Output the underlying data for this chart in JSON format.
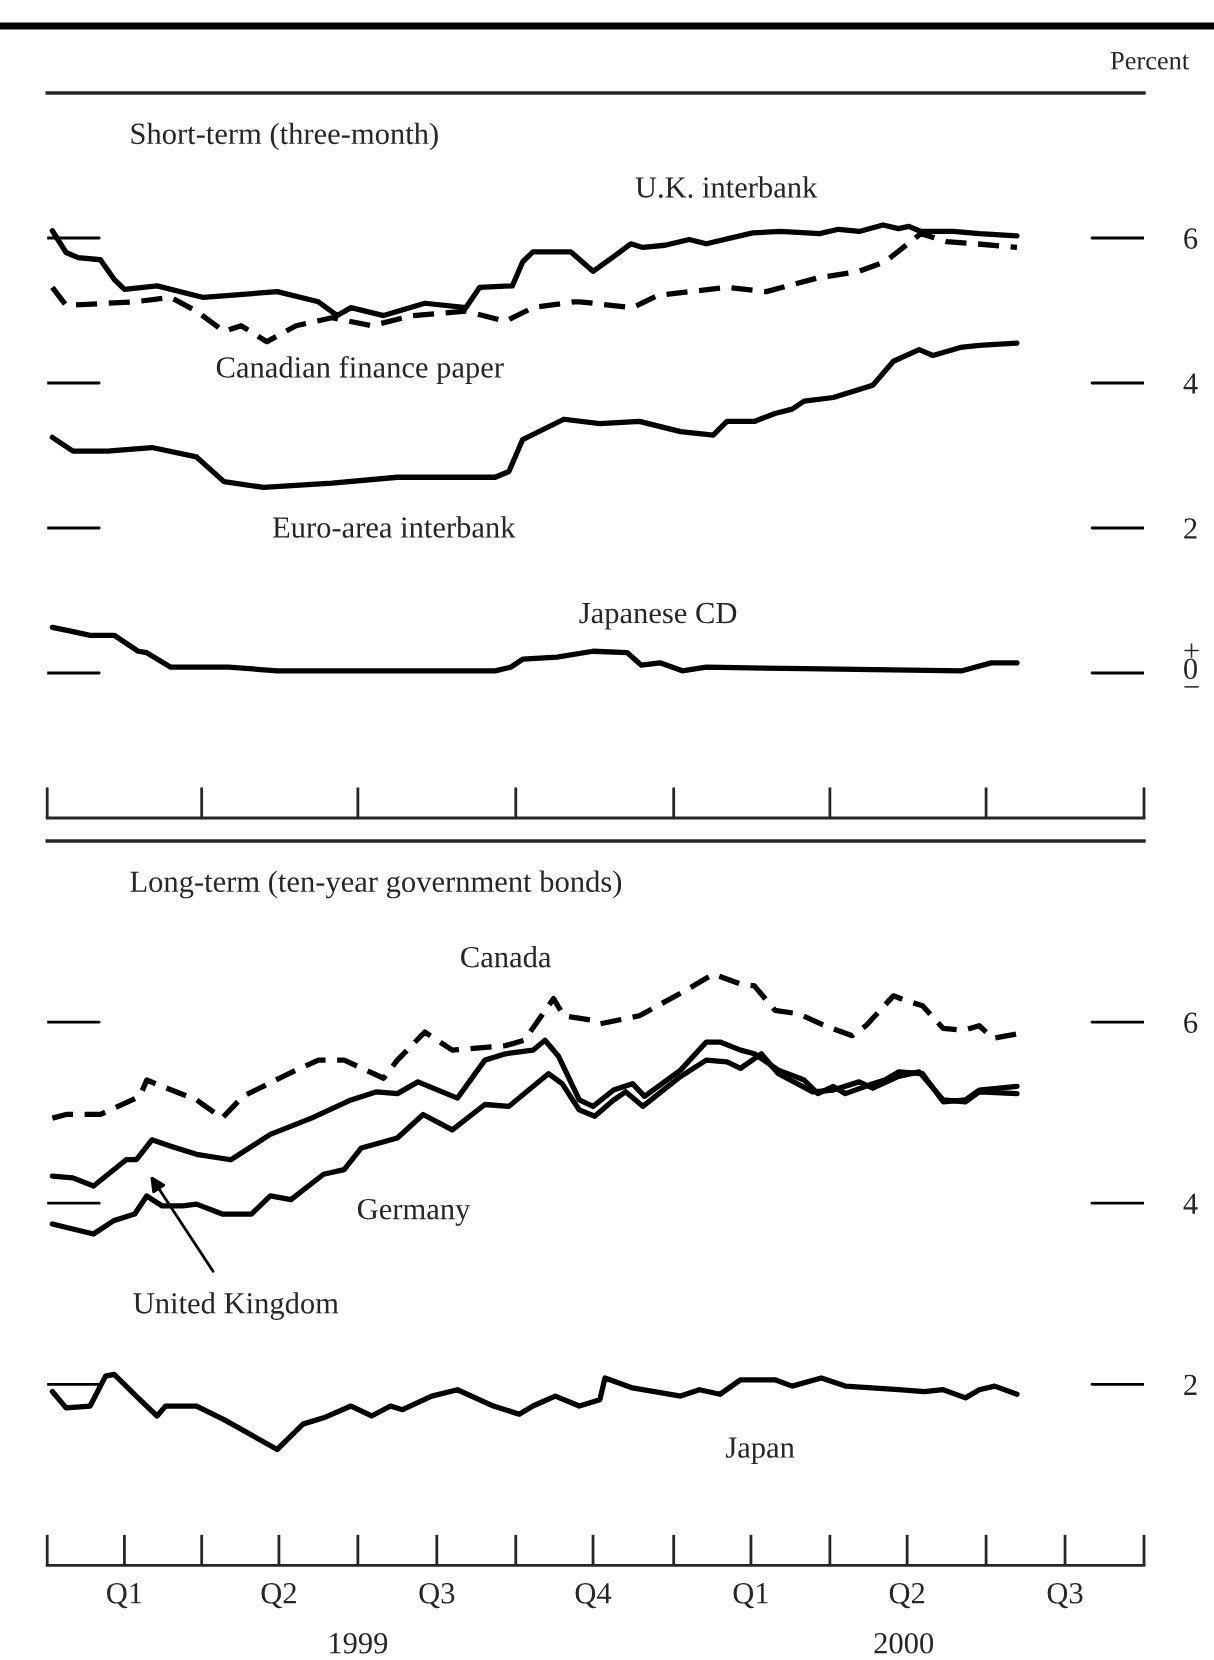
{
  "chart_data": [
    {
      "type": "line",
      "title": "Short-term (three-month)",
      "ylabel": "Percent",
      "tick_labels": "y",
      "grid": false,
      "legend": false,
      "xlim": [
        "1999-01-01",
        "2000-10-01"
      ],
      "xticks": [
        {
          "value": "1999-01-01",
          "label": null
        },
        {
          "value": "1999-04-01",
          "label": null
        },
        {
          "value": "1999-07-01",
          "label": null
        },
        {
          "value": "1999-10-01",
          "label": null
        },
        {
          "value": "2000-01-01",
          "label": null
        },
        {
          "value": "2000-04-01",
          "label": null
        },
        {
          "value": "2000-07-01",
          "label": null
        },
        {
          "value": "2000-10-01",
          "label": null
        }
      ],
      "ylim": [
        -2,
        8
      ],
      "yticks": [
        {
          "value": 0,
          "label": "+\n0\n−"
        },
        2,
        4,
        6
      ],
      "series": [
        {
          "color": "#000000",
          "line_style": "solid",
          "x": [
            "1999-01-04",
            "1999-01-12",
            "1999-01-19",
            "1999-02-01",
            "1999-02-09",
            "1999-02-15",
            "1999-03-06",
            "1999-04-02",
            "1999-05-15",
            "1999-06-08",
            "1999-06-19",
            "1999-06-27",
            "1999-07-16",
            "1999-08-09",
            "1999-09-02",
            "1999-09-10",
            "1999-09-29",
            "1999-10-05",
            "1999-10-11",
            "1999-11-02",
            "1999-11-15",
            "1999-11-28",
            "1999-12-07",
            "1999-12-14",
            "1999-12-27",
            "2000-01-10",
            "2000-01-20",
            "2000-02-16",
            "2000-03-03",
            "2000-03-26",
            "2000-04-06",
            "2000-04-18",
            "2000-05-02",
            "2000-05-11",
            "2000-05-17",
            "2000-05-24",
            "2000-06-12",
            "2000-06-27",
            "2000-07-19"
          ],
          "values": [
            6.1,
            5.8,
            5.73,
            5.7,
            5.43,
            5.29,
            5.34,
            5.18,
            5.26,
            5.12,
            4.93,
            5.04,
            4.93,
            5.1,
            5.04,
            5.32,
            5.34,
            5.67,
            5.81,
            5.81,
            5.54,
            5.76,
            5.92,
            5.87,
            5.9,
            5.98,
            5.92,
            6.07,
            6.09,
            6.06,
            6.12,
            6.09,
            6.18,
            6.13,
            6.16,
            6.09,
            6.09,
            6.06,
            6.03
          ]
        },
        {
          "color": "#000000",
          "line_style": "dashed",
          "x": [
            "1999-01-04",
            "1999-01-12",
            "1999-02-21",
            "1999-03-14",
            "1999-03-29",
            "1999-04-14",
            "1999-04-24",
            "1999-05-09",
            "1999-05-26",
            "1999-06-16",
            "1999-07-09",
            "1999-08-02",
            "1999-09-02",
            "1999-09-25",
            "1999-10-11",
            "1999-11-04",
            "1999-11-07",
            "1999-12-08",
            "1999-12-23",
            "2000-02-01",
            "2000-02-24",
            "2000-03-25",
            "2000-04-18",
            "2000-05-03",
            "2000-05-24",
            "2000-06-08",
            "2000-06-25",
            "2000-07-19"
          ],
          "values": [
            5.32,
            5.07,
            5.12,
            5.18,
            4.99,
            4.71,
            4.79,
            4.57,
            4.79,
            4.9,
            4.79,
            4.93,
            4.99,
            4.85,
            5.04,
            5.12,
            5.12,
            5.04,
            5.21,
            5.32,
            5.26,
            5.45,
            5.54,
            5.67,
            6.06,
            5.95,
            5.92,
            5.87
          ]
        },
        {
          "color": "#000000",
          "line_style": "solid",
          "x": [
            "1999-01-04",
            "1999-01-16",
            "1999-02-05",
            "1999-03-03",
            "1999-03-29",
            "1999-04-14",
            "1999-05-07",
            "1999-06-16",
            "1999-07-24",
            "1999-09-19",
            "1999-09-27",
            "1999-10-05",
            "1999-10-29",
            "1999-11-19",
            "1999-12-12",
            "2000-01-05",
            "2000-01-24",
            "2000-02-01",
            "2000-02-17",
            "2000-02-29",
            "2000-03-10",
            "2000-03-17",
            "2000-04-03",
            "2000-04-26",
            "2000-05-08",
            "2000-05-23",
            "2000-05-31",
            "2000-06-16",
            "2000-06-27",
            "2000-07-19"
          ],
          "values": [
            3.25,
            3.06,
            3.06,
            3.11,
            2.98,
            2.64,
            2.56,
            2.62,
            2.7,
            2.7,
            2.78,
            3.22,
            3.5,
            3.44,
            3.47,
            3.33,
            3.28,
            3.47,
            3.47,
            3.58,
            3.64,
            3.75,
            3.8,
            3.97,
            4.3,
            4.46,
            4.38,
            4.49,
            4.52,
            4.55
          ]
        },
        {
          "color": "#000000",
          "line_style": "solid",
          "x": [
            "1999-01-04",
            "1999-01-14",
            "1999-01-26",
            "1999-02-09",
            "1999-02-23",
            "1999-02-28",
            "1999-03-14",
            "1999-04-17",
            "1999-05-15",
            "1999-06-24",
            "1999-09-19",
            "1999-09-28",
            "1999-10-05",
            "1999-10-25",
            "1999-11-15",
            "1999-12-05",
            "1999-12-13",
            "1999-12-24",
            "2000-01-06",
            "2000-01-20",
            "2000-03-17",
            "2000-06-17",
            "2000-07-04",
            "2000-07-19"
          ],
          "values": [
            0.63,
            0.58,
            0.52,
            0.52,
            0.3,
            0.28,
            0.08,
            0.08,
            0.03,
            0.03,
            0.03,
            0.08,
            0.19,
            0.22,
            0.3,
            0.28,
            0.11,
            0.14,
            0.03,
            0.08,
            0.06,
            0.03,
            0.14,
            0.14
          ]
        }
      ],
      "annotations": [
        "U.K. interbank",
        "Canadian finance paper",
        "Euro-area interbank",
        "Japanese CD"
      ]
    },
    {
      "type": "line",
      "title": "Long-term (ten-year government bonds)",
      "grid": false,
      "legend": false,
      "xlim": [
        "1999-01-01",
        "2000-10-01"
      ],
      "xticks": [
        {
          "value": "1999-01-01",
          "label": null
        },
        {
          "value": "1999-02-15",
          "label": "Q1"
        },
        {
          "value": "1999-04-01",
          "label": null
        },
        {
          "value": "1999-05-16",
          "label": "Q2"
        },
        {
          "value": "1999-07-01",
          "label": null
        },
        {
          "value": "1999-08-16",
          "label": "Q3"
        },
        {
          "value": "1999-10-01",
          "label": null
        },
        {
          "value": "1999-11-15",
          "label": "Q4"
        },
        {
          "value": "2000-01-01",
          "label": null
        },
        {
          "value": "2000-02-15",
          "label": "Q1"
        },
        {
          "value": "2000-04-01",
          "label": null
        },
        {
          "value": "2000-05-16",
          "label": "Q2"
        },
        {
          "value": "2000-07-01",
          "label": null
        },
        {
          "value": "2000-08-16",
          "label": "Q3"
        },
        {
          "value": "2000-10-01",
          "label": null
        }
      ],
      "x2lim": [
        "1999-01-01",
        "2000-10-01"
      ],
      "x2ticks": [
        {
          "value": "1999-07-01",
          "label": "1999"
        },
        {
          "value": "2000-05-14",
          "label": "2000"
        }
      ],
      "ylim": [
        0,
        8
      ],
      "yticks": [
        2,
        4,
        6
      ],
      "series": [
        {
          "color": "#000000",
          "line_style": "dashed",
          "x": [
            "1999-01-04",
            "1999-01-12",
            "1999-02-01",
            "1999-02-24",
            "1999-02-28",
            "1999-03-09",
            "1999-03-29",
            "1999-04-13",
            "1999-04-25",
            "1999-05-26",
            "1999-06-08",
            "1999-06-23",
            "1999-07-16",
            "1999-07-24",
            "1999-08-09",
            "1999-08-25",
            "1999-09-25",
            "1999-10-06",
            "1999-10-23",
            "1999-10-29",
            "1999-11-15",
            "1999-11-19",
            "1999-12-12",
            "2000-01-08",
            "2000-01-24",
            "2000-02-09",
            "2000-02-17",
            "2000-02-29",
            "2000-03-14",
            "2000-03-29",
            "2000-04-14",
            "2000-04-22",
            "2000-05-08",
            "2000-05-15",
            "2000-05-25",
            "2000-06-06",
            "2000-06-18",
            "2000-06-27",
            "2000-07-05",
            "2000-07-19"
          ],
          "values": [
            4.94,
            4.98,
            4.98,
            5.18,
            5.36,
            5.29,
            5.14,
            4.94,
            5.18,
            5.47,
            5.58,
            5.58,
            5.38,
            5.58,
            5.89,
            5.69,
            5.74,
            5.8,
            6.26,
            6.07,
            6.02,
            5.98,
            6.07,
            6.35,
            6.53,
            6.42,
            6.4,
            6.13,
            6.09,
            5.96,
            5.85,
            5.96,
            6.29,
            6.24,
            6.18,
            5.93,
            5.91,
            5.96,
            5.82,
            5.87
          ]
        },
        {
          "color": "#000000",
          "line_style": "solid",
          "x": [
            "1999-01-04",
            "1999-01-16",
            "1999-01-28",
            "1999-02-16",
            "1999-02-22",
            "1999-03-03",
            "1999-03-14",
            "1999-03-29",
            "1999-04-18",
            "1999-05-11",
            "1999-06-04",
            "1999-06-27",
            "1999-07-12",
            "1999-07-24",
            "1999-08-05",
            "1999-08-28",
            "1999-09-13",
            "1999-09-25",
            "1999-10-11",
            "1999-10-18",
            "1999-10-26",
            "1999-11-07",
            "1999-11-15",
            "1999-11-27",
            "1999-12-08",
            "1999-12-15",
            "2000-01-05",
            "2000-01-20",
            "2000-01-28",
            "2000-02-09",
            "2000-02-17",
            "2000-03-02",
            "2000-03-17",
            "2000-03-25",
            "2000-04-03",
            "2000-04-10",
            "2000-04-26",
            "2000-05-03",
            "2000-05-11",
            "2000-05-25",
            "2000-06-06",
            "2000-06-19",
            "2000-06-27",
            "2000-07-19"
          ],
          "values": [
            4.3,
            4.28,
            4.19,
            4.48,
            4.48,
            4.7,
            4.63,
            4.54,
            4.48,
            4.76,
            4.94,
            5.14,
            5.23,
            5.21,
            5.34,
            5.16,
            5.58,
            5.65,
            5.69,
            5.8,
            5.62,
            5.14,
            5.07,
            5.25,
            5.32,
            5.18,
            5.47,
            5.78,
            5.78,
            5.69,
            5.65,
            5.47,
            5.36,
            5.21,
            5.29,
            5.21,
            5.32,
            5.36,
            5.45,
            5.43,
            5.12,
            5.14,
            5.25,
            5.29
          ]
        },
        {
          "color": "#000000",
          "line_style": "solid",
          "x": [
            "1999-01-04",
            "1999-01-28",
            "1999-02-09",
            "1999-02-21",
            "1999-02-28",
            "1999-03-09",
            "1999-03-21",
            "1999-03-29",
            "1999-04-13",
            "1999-04-30",
            "1999-05-11",
            "1999-05-23",
            "1999-06-11",
            "1999-06-23",
            "1999-07-03",
            "1999-07-24",
            "1999-08-08",
            "1999-08-25",
            "1999-09-13",
            "1999-09-27",
            "1999-10-20",
            "1999-10-28",
            "1999-11-07",
            "1999-11-16",
            "1999-11-27",
            "1999-12-04",
            "1999-12-14",
            "2000-01-05",
            "2000-01-20",
            "2000-02-01",
            "2000-02-09",
            "2000-02-21",
            "2000-03-02",
            "2000-03-22",
            "2000-04-03",
            "2000-04-18",
            "2000-04-26",
            "2000-05-11",
            "2000-05-23",
            "2000-06-06",
            "2000-06-19",
            "2000-06-27",
            "2000-07-19"
          ],
          "values": [
            3.77,
            3.66,
            3.81,
            3.88,
            4.08,
            3.97,
            3.97,
            3.99,
            3.88,
            3.88,
            4.08,
            4.04,
            4.32,
            4.37,
            4.61,
            4.72,
            4.98,
            4.81,
            5.09,
            5.07,
            5.43,
            5.32,
            5.03,
            4.96,
            5.14,
            5.23,
            5.07,
            5.4,
            5.58,
            5.56,
            5.49,
            5.65,
            5.43,
            5.23,
            5.25,
            5.34,
            5.27,
            5.4,
            5.45,
            5.14,
            5.12,
            5.23,
            5.21
          ]
        },
        {
          "color": "#000000",
          "line_style": "solid",
          "x": [
            "1999-01-04",
            "1999-01-12",
            "1999-01-26",
            "1999-02-04",
            "1999-02-09",
            "1999-02-24",
            "1999-03-06",
            "1999-03-11",
            "1999-03-29",
            "1999-04-14",
            "1999-05-15",
            "1999-05-30",
            "1999-06-11",
            "1999-06-27",
            "1999-07-09",
            "1999-07-20",
            "1999-07-27",
            "1999-08-13",
            "1999-08-28",
            "1999-09-18",
            "1999-10-03",
            "1999-10-11",
            "1999-10-24",
            "1999-11-07",
            "1999-11-19",
            "1999-11-22",
            "1999-12-08",
            "2000-01-05",
            "2000-01-16",
            "2000-01-28",
            "2000-02-09",
            "2000-02-29",
            "2000-03-10",
            "2000-03-27",
            "2000-04-10",
            "2000-05-11",
            "2000-05-26",
            "2000-06-06",
            "2000-06-19",
            "2000-06-27",
            "2000-07-06",
            "2000-07-19"
          ],
          "values": [
            1.92,
            1.74,
            1.76,
            2.09,
            2.11,
            1.83,
            1.65,
            1.76,
            1.76,
            1.61,
            1.28,
            1.56,
            1.63,
            1.76,
            1.65,
            1.76,
            1.72,
            1.87,
            1.94,
            1.76,
            1.67,
            1.76,
            1.87,
            1.76,
            1.83,
            2.07,
            1.96,
            1.87,
            1.94,
            1.89,
            2.05,
            2.05,
            1.98,
            2.07,
            1.98,
            1.94,
            1.92,
            1.94,
            1.85,
            1.94,
            1.98,
            1.89
          ]
        }
      ],
      "annotations": [
        "Canada",
        "Germany",
        "United Kingdom",
        "Japan"
      ]
    }
  ]
}
